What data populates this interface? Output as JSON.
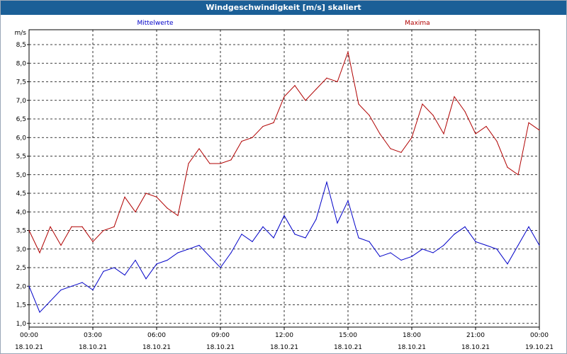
{
  "window": {
    "title": "Windgeschwindigkeit [m/s] skaliert"
  },
  "chart_data": {
    "type": "line",
    "title": "Windgeschwindigkeit [m/s] skaliert",
    "ylabel": "m/s",
    "xlabel": "",
    "ylim": [
      0.9,
      8.9
    ],
    "yticks": [
      1.0,
      1.5,
      2.0,
      2.5,
      3.0,
      3.5,
      4.0,
      4.5,
      5.0,
      5.5,
      6.0,
      6.5,
      7.0,
      7.5,
      8.0,
      8.5
    ],
    "ytick_labels": [
      "1,0",
      "1,5",
      "2,0",
      "2,5",
      "3,0",
      "3,5",
      "4,0",
      "4,5",
      "5,0",
      "5,5",
      "6,0",
      "6,5",
      "7,0",
      "7,5",
      "8,0",
      "8,5"
    ],
    "xlim_hours": [
      0,
      24
    ],
    "xticks": [
      {
        "hour": 0,
        "time": "00:00",
        "date": "18.10.21"
      },
      {
        "hour": 3,
        "time": "03:00",
        "date": "18.10.21"
      },
      {
        "hour": 6,
        "time": "06:00",
        "date": "18.10.21"
      },
      {
        "hour": 9,
        "time": "09:00",
        "date": "18.10.21"
      },
      {
        "hour": 12,
        "time": "12:00",
        "date": "18.10.21"
      },
      {
        "hour": 15,
        "time": "15:00",
        "date": "18.10.21"
      },
      {
        "hour": 18,
        "time": "18:00",
        "date": "18.10.21"
      },
      {
        "hour": 21,
        "time": "21:00",
        "date": "18.10.21"
      },
      {
        "hour": 24,
        "time": "00:00",
        "date": "19.10.21"
      }
    ],
    "grid": true,
    "series": [
      {
        "name": "Mittelwerte",
        "color": "#0000c8",
        "x": [
          0,
          0.5,
          1,
          1.5,
          2,
          2.5,
          3,
          3.5,
          4,
          4.5,
          5,
          5.5,
          6,
          6.5,
          7,
          7.5,
          8,
          8.5,
          9,
          9.5,
          10,
          10.5,
          11,
          11.5,
          12,
          12.5,
          13,
          13.5,
          14,
          14.5,
          15,
          15.5,
          16,
          16.5,
          17,
          17.5,
          18,
          18.5,
          19,
          19.5,
          20,
          20.5,
          21,
          21.5,
          22,
          22.5,
          23,
          23.5,
          24
        ],
        "values": [
          2.0,
          1.3,
          1.6,
          1.9,
          2.0,
          2.1,
          1.9,
          2.4,
          2.5,
          2.3,
          2.7,
          2.2,
          2.6,
          2.7,
          2.9,
          3.0,
          3.1,
          2.8,
          2.5,
          2.9,
          3.4,
          3.2,
          3.6,
          3.3,
          3.9,
          3.4,
          3.3,
          3.8,
          4.8,
          3.7,
          4.3,
          3.3,
          3.2,
          2.8,
          2.9,
          2.7,
          2.8,
          3.0,
          2.9,
          3.1,
          3.4,
          3.6,
          3.2,
          3.1,
          3.0,
          2.6,
          3.1,
          3.6,
          3.1
        ]
      },
      {
        "name": "Maxima",
        "color": "#b00000",
        "x": [
          0,
          0.5,
          1,
          1.5,
          2,
          2.5,
          3,
          3.5,
          4,
          4.5,
          5,
          5.5,
          6,
          6.5,
          7,
          7.5,
          8,
          8.5,
          9,
          9.5,
          10,
          10.5,
          11,
          11.5,
          12,
          12.5,
          13,
          13.5,
          14,
          14.5,
          15,
          15.5,
          16,
          16.5,
          17,
          17.5,
          18,
          18.5,
          19,
          19.5,
          20,
          20.5,
          21,
          21.5,
          22,
          22.5,
          23,
          23.5,
          24
        ],
        "values": [
          3.5,
          2.9,
          3.6,
          3.1,
          3.6,
          3.6,
          3.2,
          3.5,
          3.6,
          4.4,
          4.0,
          4.5,
          4.4,
          4.1,
          3.9,
          5.3,
          5.7,
          5.3,
          5.3,
          5.4,
          5.9,
          6.0,
          6.3,
          6.4,
          7.1,
          7.4,
          7.0,
          7.3,
          7.6,
          7.5,
          8.3,
          6.9,
          6.6,
          6.1,
          5.7,
          5.6,
          6.0,
          6.9,
          6.6,
          6.1,
          7.1,
          6.7,
          6.1,
          6.3,
          5.9,
          5.2,
          5.0,
          6.4,
          6.2
        ]
      }
    ]
  }
}
